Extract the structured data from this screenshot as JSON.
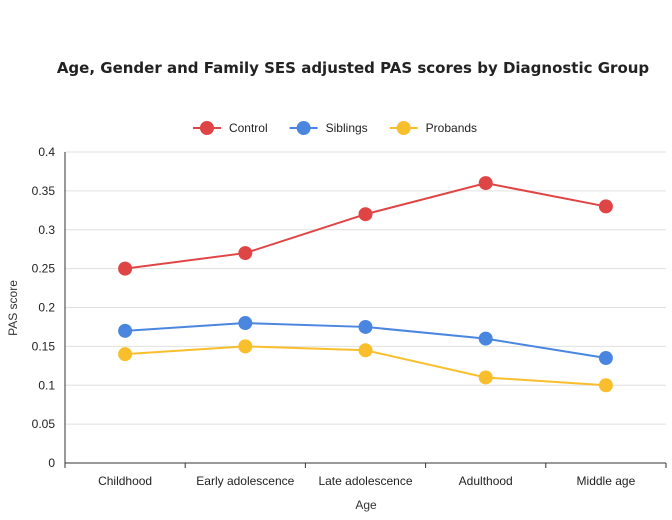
{
  "chart_data": {
    "type": "line",
    "title": "Age, Gender and Family SES adjusted PAS scores by Diagnostic Group",
    "xlabel": "Age",
    "ylabel": "PAS score",
    "categories": [
      "Childhood",
      "Early adolescence",
      "Late adolescence",
      "Adulthood",
      "Middle age"
    ],
    "ylim": [
      0,
      0.4
    ],
    "yticks": [
      "0",
      "0.05",
      "0.1",
      "0.15",
      "0.2",
      "0.25",
      "0.3",
      "0.35",
      "0.4"
    ],
    "grid": true,
    "legend_position": "top",
    "series": [
      {
        "name": "Control",
        "color": "#e04545",
        "values": [
          0.25,
          0.27,
          0.32,
          0.36,
          0.33
        ]
      },
      {
        "name": "Siblings",
        "color": "#4a86e0",
        "values": [
          0.17,
          0.18,
          0.175,
          0.16,
          0.135
        ]
      },
      {
        "name": "Probands",
        "color": "#f9be2b",
        "values": [
          0.14,
          0.15,
          0.145,
          0.11,
          0.1
        ]
      }
    ]
  }
}
